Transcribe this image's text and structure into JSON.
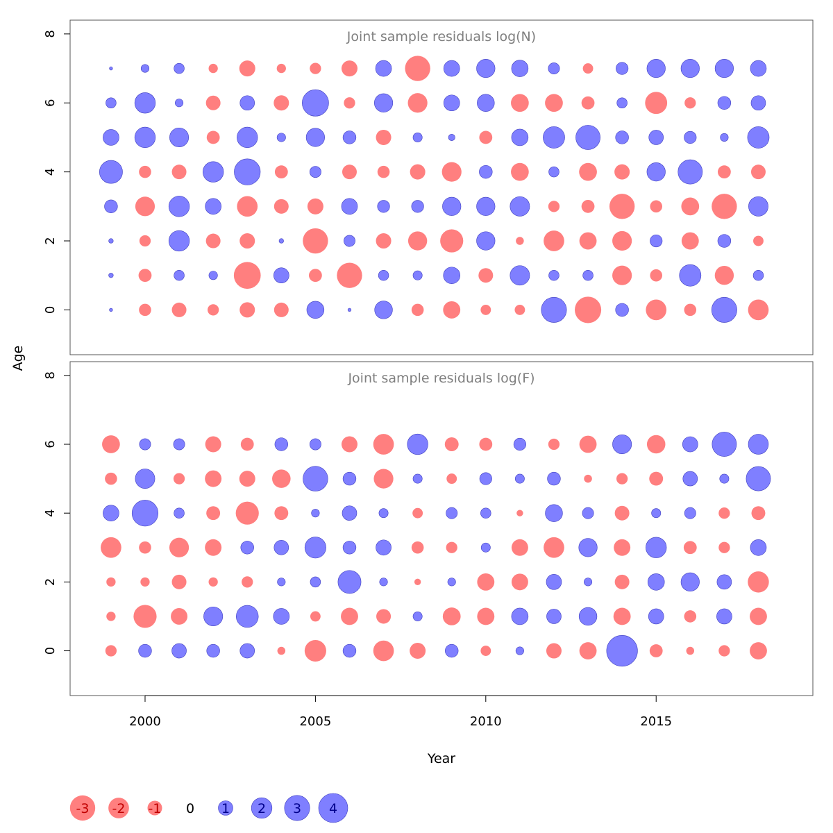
{
  "chart_data": {
    "type": "scatter",
    "xlabel": "Year",
    "ylabel": "Age",
    "x_ticks": [
      2000,
      2005,
      2010,
      2015
    ],
    "y_ticks": [
      0,
      2,
      4,
      6,
      8
    ],
    "xlim": [
      1997.8,
      2019.6
    ],
    "ylim": [
      -1.3,
      8.4
    ],
    "colors": {
      "positive": "#7f7fff",
      "negative": "#ff7f7f",
      "positive_stroke": "#4040c0"
    },
    "years": [
      1999,
      2000,
      2001,
      2002,
      2003,
      2004,
      2005,
      2006,
      2007,
      2008,
      2009,
      2010,
      2011,
      2012,
      2013,
      2014,
      2015,
      2016,
      2017,
      2018
    ],
    "panels": [
      {
        "title": "Joint sample residuals log(N)",
        "ages": [
          0,
          1,
          2,
          3,
          4,
          5,
          6,
          7
        ],
        "residuals": [
          [
            0.05,
            0.1,
            0.1,
            0.8,
            2.5,
            1.2,
            0.5,
            0.05
          ],
          [
            -0.7,
            -0.8,
            -0.6,
            -1.8,
            -0.7,
            2.0,
            2.0,
            0.3
          ],
          [
            -1.0,
            0.5,
            2.0,
            2.0,
            -1.0,
            1.7,
            0.3,
            0.5
          ],
          [
            -0.6,
            0.35,
            -1.0,
            1.2,
            2.0,
            -0.8,
            -1.0,
            -0.4
          ],
          [
            -1.1,
            -3.4,
            -1.1,
            -2.0,
            3.2,
            2.0,
            1.0,
            -1.2
          ],
          [
            -1.0,
            1.1,
            0.1,
            -1.0,
            -0.8,
            0.35,
            -1.1,
            -0.4
          ],
          [
            1.4,
            -0.8,
            -3.0,
            -1.2,
            0.6,
            1.6,
            3.3,
            -0.6
          ],
          [
            0.05,
            -3.0,
            0.6,
            1.2,
            -1.0,
            0.8,
            -0.6,
            -1.2
          ],
          [
            1.5,
            0.5,
            -1.1,
            0.7,
            -0.7,
            -1.1,
            1.6,
            1.2
          ],
          [
            -0.7,
            0.4,
            -1.7,
            0.7,
            -1.1,
            0.4,
            -1.8,
            -3.0
          ],
          [
            -1.4,
            1.3,
            -2.5,
            1.6,
            -1.8,
            0.2,
            1.2,
            1.2
          ],
          [
            -0.5,
            -1.0,
            1.6,
            1.6,
            0.8,
            -0.8,
            1.4,
            1.6
          ],
          [
            -0.5,
            1.8,
            -0.3,
            1.8,
            -1.5,
            1.3,
            -1.5,
            1.3
          ],
          [
            3.0,
            0.5,
            -2.0,
            -0.6,
            0.5,
            2.2,
            -1.5,
            0.6
          ],
          [
            -3.3,
            0.5,
            -1.4,
            -0.8,
            -1.5,
            2.8,
            -0.8,
            -0.5
          ],
          [
            0.8,
            -1.8,
            -1.8,
            -3.0,
            -1.1,
            0.8,
            0.5,
            0.7
          ],
          [
            -2.0,
            -0.7,
            0.7,
            -0.7,
            1.6,
            1.0,
            -2.3,
            1.6
          ],
          [
            -0.7,
            2.2,
            -1.4,
            -1.5,
            2.8,
            0.7,
            -0.6,
            1.6
          ],
          [
            3.0,
            -1.7,
            0.8,
            -3.0,
            -0.8,
            0.3,
            0.8,
            1.6
          ],
          [
            -2.0,
            0.5,
            -0.5,
            1.8,
            -1.0,
            2.2,
            1.0,
            1.2
          ]
        ]
      },
      {
        "title": "Joint sample residuals log(F)",
        "ages": [
          0,
          1,
          2,
          3,
          4,
          5,
          6
        ],
        "residuals": [
          [
            -0.6,
            -0.4,
            -0.4,
            -2.0,
            1.2,
            -0.7,
            -1.5
          ],
          [
            0.8,
            -2.5,
            -0.4,
            -0.7,
            3.2,
            1.8,
            0.6
          ],
          [
            1.0,
            -1.3,
            -1.0,
            -1.8,
            0.5,
            -0.6,
            0.6
          ],
          [
            0.8,
            1.7,
            -0.4,
            -1.3,
            -0.9,
            -1.3,
            -1.2
          ],
          [
            1.0,
            2.3,
            -0.6,
            0.8,
            -2.5,
            -1.2,
            -0.8
          ],
          [
            -0.3,
            1.2,
            0.3,
            1.0,
            -0.9,
            -1.6,
            0.8
          ],
          [
            -2.2,
            -0.5,
            0.5,
            2.1,
            0.3,
            2.9,
            0.6
          ],
          [
            0.8,
            -1.4,
            2.5,
            0.8,
            1.0,
            0.8,
            -1.2
          ],
          [
            -2.0,
            -1.0,
            0.3,
            1.1,
            0.4,
            -1.8,
            -2.0
          ],
          [
            -1.2,
            0.4,
            -0.2,
            -0.7,
            -0.5,
            0.4,
            2.0
          ],
          [
            0.8,
            -1.5,
            0.3,
            -0.6,
            0.6,
            -0.5,
            -0.9
          ],
          [
            -0.5,
            -1.4,
            -1.4,
            0.4,
            0.5,
            0.7,
            -0.8
          ],
          [
            0.3,
            1.3,
            -1.3,
            -1.3,
            -0.2,
            0.4,
            0.7
          ],
          [
            -1.1,
            1.0,
            1.1,
            -2.0,
            1.4,
            0.8,
            -0.6
          ],
          [
            -1.4,
            1.5,
            0.3,
            1.6,
            0.6,
            -0.3,
            -1.4
          ],
          [
            4.5,
            -1.4,
            -1.0,
            -1.3,
            -1.0,
            -0.6,
            1.7
          ],
          [
            -0.8,
            1.1,
            1.3,
            2.0,
            0.4,
            -0.9,
            -1.6
          ],
          [
            -0.3,
            -0.7,
            1.6,
            -0.8,
            0.6,
            1.0,
            1.1
          ],
          [
            -0.6,
            1.1,
            1.0,
            -0.6,
            -0.6,
            0.4,
            2.8
          ],
          [
            -1.4,
            -1.4,
            -2.1,
            1.2,
            -0.9,
            2.8,
            1.9
          ]
        ]
      }
    ],
    "legend": {
      "values": [
        -3,
        -2,
        -1,
        0,
        1,
        2,
        3,
        4
      ],
      "labels": [
        "-3",
        "-2",
        "-1",
        "0",
        "1",
        "2",
        "3",
        "4"
      ]
    }
  }
}
